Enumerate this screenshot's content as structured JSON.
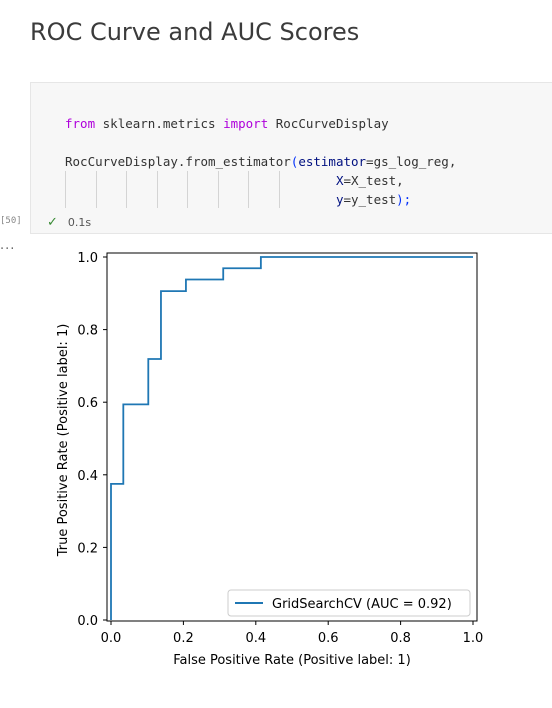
{
  "markdown": {
    "heading": "ROC Curve and AUC Scores"
  },
  "cell": {
    "execution_count": "[50]",
    "status_time": "0.1s",
    "output_prompt": "...",
    "code": {
      "kw_from": "from",
      "module": "sklearn.metrics",
      "kw_import": "import",
      "imported": "RocCurveDisplay",
      "class_name": "RocCurveDisplay",
      "method": ".from_estimator",
      "open_paren": "(",
      "arg1_name": "estimator",
      "arg1_value": "=gs_log_reg,",
      "arg2_name": "X",
      "arg2_value": "=X_test,",
      "arg3_name": "y",
      "arg3_value": "=y_test",
      "close": ");"
    }
  },
  "chart_data": {
    "type": "line",
    "xlabel": "False Positive Rate (Positive label: 1)",
    "ylabel": "True Positive Rate (Positive label: 1)",
    "xlim": [
      0.0,
      1.0
    ],
    "ylim": [
      0.0,
      1.0
    ],
    "xticks": [
      "0.0",
      "0.2",
      "0.4",
      "0.6",
      "0.8",
      "1.0"
    ],
    "yticks": [
      "0.0",
      "0.2",
      "0.4",
      "0.6",
      "0.8",
      "1.0"
    ],
    "grid": false,
    "legend_position": "lower-right",
    "series": [
      {
        "name": "GridSearchCV (AUC = 0.92)",
        "color": "#1f77b4",
        "x": [
          0.0,
          0.0,
          0.0,
          0.034,
          0.034,
          0.103,
          0.103,
          0.138,
          0.138,
          0.207,
          0.207,
          0.31,
          0.31,
          0.414,
          0.414,
          1.0
        ],
        "y": [
          0.0,
          0.031,
          0.375,
          0.375,
          0.594,
          0.594,
          0.719,
          0.719,
          0.906,
          0.906,
          0.938,
          0.938,
          0.969,
          0.969,
          1.0,
          1.0
        ]
      }
    ]
  }
}
